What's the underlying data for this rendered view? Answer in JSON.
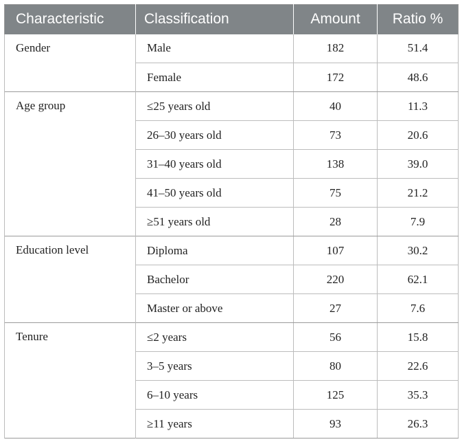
{
  "headers": [
    "Characteristic",
    "Classification",
    "Amount",
    "Ratio %"
  ],
  "groups": [
    {
      "characteristic": "Gender",
      "rows": [
        {
          "classification": "Male",
          "amount": "182",
          "ratio": "51.4"
        },
        {
          "classification": "Female",
          "amount": "172",
          "ratio": "48.6"
        }
      ]
    },
    {
      "characteristic": "Age group",
      "rows": [
        {
          "classification": "≤25 years old",
          "amount": "40",
          "ratio": "11.3"
        },
        {
          "classification": "26–30 years old",
          "amount": "73",
          "ratio": "20.6"
        },
        {
          "classification": "31–40 years old",
          "amount": "138",
          "ratio": "39.0"
        },
        {
          "classification": "41–50 years old",
          "amount": "75",
          "ratio": "21.2"
        },
        {
          "classification": "≥51 years old",
          "amount": "28",
          "ratio": "7.9"
        }
      ]
    },
    {
      "characteristic": "Education level",
      "rows": [
        {
          "classification": "Diploma",
          "amount": "107",
          "ratio": "30.2"
        },
        {
          "classification": "Bachelor",
          "amount": "220",
          "ratio": "62.1"
        },
        {
          "classification": "Master or above",
          "amount": "27",
          "ratio": "7.6"
        }
      ]
    },
    {
      "characteristic": "Tenure",
      "rows": [
        {
          "classification": "≤2 years",
          "amount": "56",
          "ratio": "15.8"
        },
        {
          "classification": "3–5 years",
          "amount": "80",
          "ratio": "22.6"
        },
        {
          "classification": "6–10 years",
          "amount": "125",
          "ratio": "35.3"
        },
        {
          "classification": "≥11 years",
          "amount": "93",
          "ratio": "26.3"
        }
      ]
    }
  ]
}
